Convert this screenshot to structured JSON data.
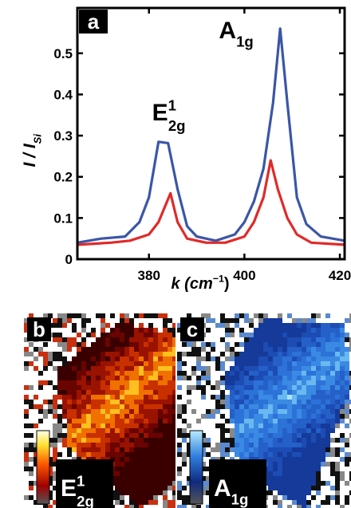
{
  "chart_data": {
    "type": "line",
    "panel_label": "a",
    "ylabel": {
      "text": "I / I",
      "sub": "Si"
    },
    "xlabel": {
      "text": "k (cm",
      "sup": "−1",
      "tail": ")"
    },
    "annotations": [
      {
        "text": "E",
        "sup": "1",
        "sub": "2g",
        "x": 384,
        "y": 0.36
      },
      {
        "text": "A",
        "sub": "1g",
        "x": 398,
        "y": 0.56
      }
    ],
    "xlim": [
      365,
      421
    ],
    "xticks": [
      380,
      400,
      420
    ],
    "ylim": [
      0,
      0.61
    ],
    "yticks": [
      0,
      0.1,
      0.2,
      0.3,
      0.4,
      0.5
    ],
    "series": [
      {
        "color": "#3b56a8",
        "x": [
          365,
          370,
          375,
          378,
          380,
          382,
          384,
          386,
          388,
          390,
          394,
          398,
          400,
          402,
          404,
          406,
          407.5,
          409,
          411,
          413,
          416,
          421
        ],
        "values": [
          0.04,
          0.05,
          0.055,
          0.09,
          0.15,
          0.285,
          0.282,
          0.17,
          0.08,
          0.055,
          0.045,
          0.06,
          0.09,
          0.14,
          0.22,
          0.38,
          0.56,
          0.38,
          0.15,
          0.085,
          0.055,
          0.045
        ]
      },
      {
        "color": "#e02a2a",
        "x": [
          365,
          372,
          376,
          380,
          382,
          384.5,
          386,
          388,
          392,
          396,
          400,
          402,
          404,
          405.5,
          407,
          409,
          411,
          414,
          421
        ],
        "values": [
          0.035,
          0.04,
          0.045,
          0.06,
          0.09,
          0.16,
          0.09,
          0.05,
          0.04,
          0.04,
          0.055,
          0.09,
          0.15,
          0.24,
          0.17,
          0.1,
          0.06,
          0.04,
          0.035
        ]
      }
    ]
  },
  "maps": [
    {
      "panel_label": "b",
      "legend": {
        "text": "E",
        "sup": "1",
        "sub": "2g"
      }
    },
    {
      "panel_label": "c",
      "legend": {
        "text": "A",
        "sub": "1g"
      }
    }
  ]
}
